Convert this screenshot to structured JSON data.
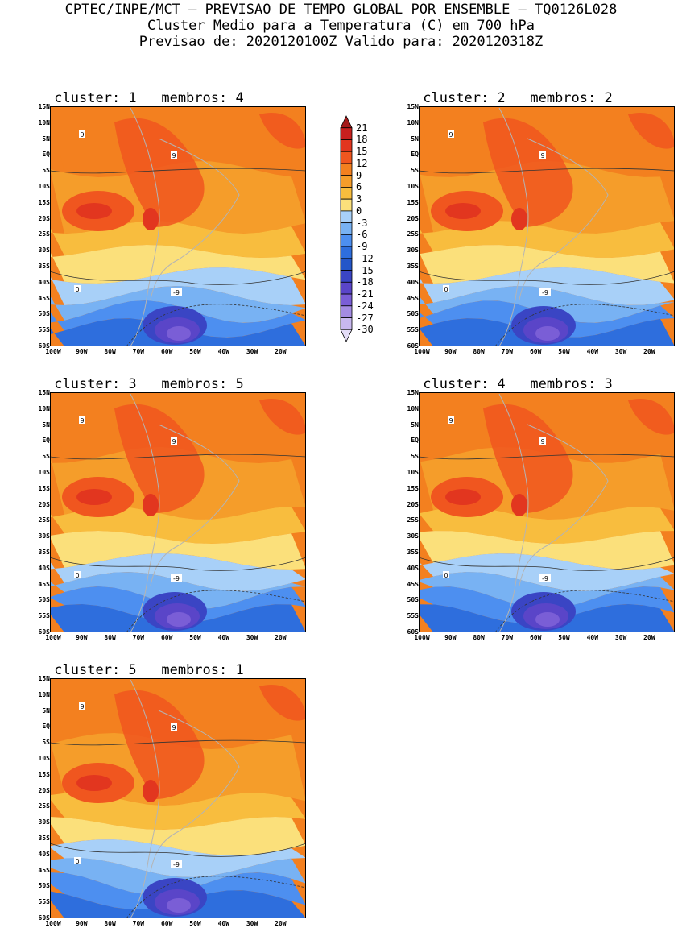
{
  "header": {
    "line1": "CPTEC/INPE/MCT – PREVISAO DE TEMPO GLOBAL POR ENSEMBLE – TQ0126L028",
    "line2": "Cluster Medio para a Temperatura (C) em 700 hPa",
    "line3": "Previsao de: 2020120100Z   Valido para: 2020120318Z"
  },
  "panels": [
    {
      "title": "cluster: 1   membros: 4"
    },
    {
      "title": "cluster: 2   membros: 2"
    },
    {
      "title": "cluster: 3   membros: 5"
    },
    {
      "title": "cluster: 4   membros: 3"
    },
    {
      "title": "cluster: 5   membros: 1"
    }
  ],
  "lat_labels": [
    "15N",
    "10N",
    "5N",
    "EQ",
    "5S",
    "10S",
    "15S",
    "20S",
    "25S",
    "30S",
    "35S",
    "40S",
    "45S",
    "50S",
    "55S",
    "60S"
  ],
  "lon_labels": [
    "100W",
    "90W",
    "80W",
    "70W",
    "60W",
    "50W",
    "40W",
    "30W",
    "20W"
  ],
  "colorbar": {
    "levels": [
      "21",
      "18",
      "15",
      "12",
      "9",
      "6",
      "3",
      "0",
      "-3",
      "-6",
      "-9",
      "-12",
      "-15",
      "-18",
      "-21",
      "-24",
      "-27",
      "-30"
    ],
    "colors": [
      "#a51a1a",
      "#c8201e",
      "#e2361f",
      "#f0561f",
      "#f3801f",
      "#f59d2a",
      "#f8bd3e",
      "#fbe07b",
      "#a8d0f8",
      "#78b2f3",
      "#4d8ff0",
      "#2e6edd",
      "#2456c8",
      "#3a45c4",
      "#5a45c8",
      "#7a5ed6",
      "#a48ce3",
      "#c8b8ef",
      "#e3dcf7"
    ]
  },
  "contour_labels": {
    "c9": "9",
    "c0": "0",
    "cm9": "-9"
  }
}
